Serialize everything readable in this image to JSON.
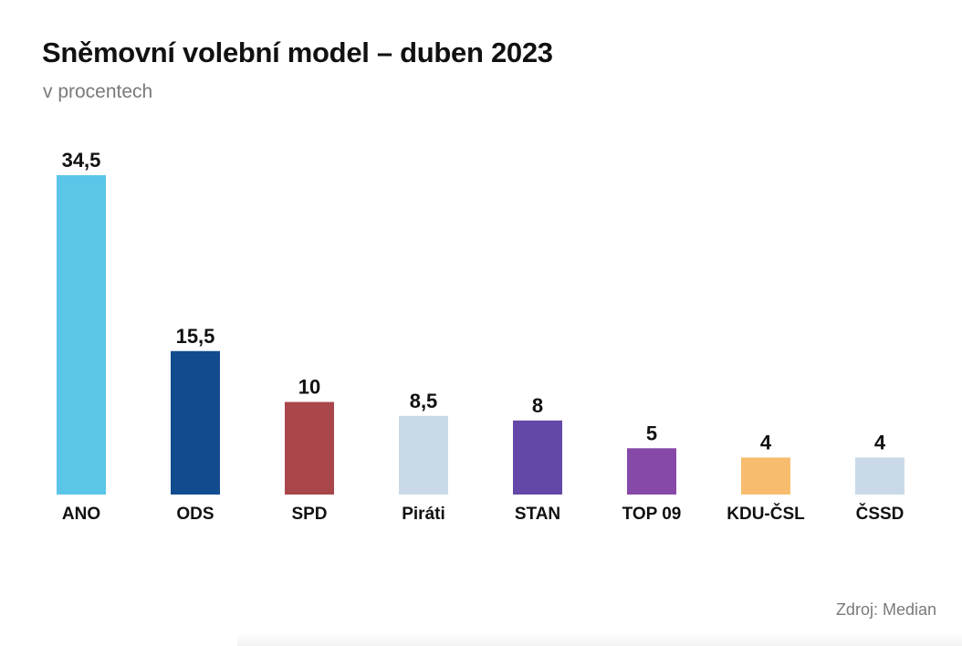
{
  "chart_data": {
    "type": "bar",
    "title": "Sněmovní volební model – duben 2023",
    "subtitle": "v procentech",
    "categories": [
      "ANO",
      "ODS",
      "SPD",
      "Piráti",
      "STAN",
      "TOP 09",
      "KDU-ČSL",
      "ČSSD"
    ],
    "values": [
      34.5,
      15.5,
      10,
      8.5,
      8,
      5,
      4,
      4
    ],
    "value_labels": [
      "34,5",
      "15,5",
      "10",
      "8,5",
      "8",
      "5",
      "4",
      "4"
    ],
    "colors": [
      "#5BC6E8",
      "#124C8F",
      "#A9464A",
      "#C9D9E8",
      "#6448A8",
      "#8749A8",
      "#F8BC6E",
      "#C9D9E8"
    ],
    "ylim": [
      0,
      34.5
    ],
    "grid": false,
    "source": "Zdroj: Median"
  }
}
